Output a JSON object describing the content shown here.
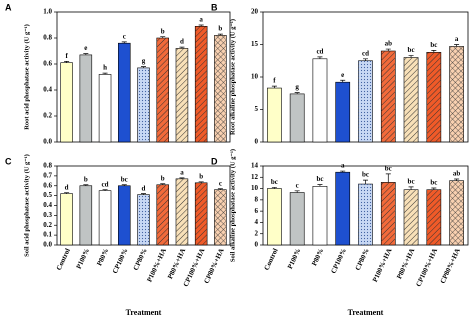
{
  "chart_data": [
    {
      "type": "bar",
      "panel": "A",
      "y_label": "Root acid phosphatase activity (U g⁻¹)",
      "categories": [
        null,
        null,
        null,
        null,
        null,
        null,
        null,
        null,
        null
      ],
      "values": [
        0.61,
        0.67,
        0.52,
        0.76,
        0.57,
        0.8,
        0.72,
        0.89,
        0.82
      ],
      "errors": [
        0.01,
        0.01,
        0.01,
        0.01,
        0.01,
        0.01,
        0.01,
        0.01,
        0.01
      ],
      "annotations": [
        "f",
        "e",
        "h",
        "c",
        "g",
        "b",
        "d",
        "a",
        "b"
      ],
      "colors": [
        "#ffffc8",
        "#c0c4c4",
        "#ffffff",
        "#1e50d0",
        "#c8d8f4",
        "#f26a3a",
        "#f8e0b8",
        "#f05a28",
        "#f8d0b0"
      ],
      "patterns": [
        "none",
        "none",
        "none",
        "none",
        "dots",
        "hatch",
        "hatch",
        "hatch",
        "cross"
      ],
      "ylim": [
        0,
        1.0
      ],
      "yticks": [
        {
          "value": 0,
          "label": "0.0"
        },
        0.2,
        0.4,
        0.6,
        0.8,
        {
          "value": 1,
          "label": "1.0"
        }
      ]
    },
    {
      "type": "bar",
      "panel": "B",
      "y_label": "Root alkaline phosphatase activity (U g⁻¹)",
      "categories": [
        null,
        null,
        null,
        null,
        null,
        null,
        null,
        null,
        null
      ],
      "values": [
        8.3,
        7.4,
        12.8,
        9.2,
        12.5,
        14.0,
        13.0,
        13.8,
        14.7
      ],
      "errors": [
        0.3,
        0.2,
        0.3,
        0.3,
        0.3,
        0.3,
        0.3,
        0.3,
        0.3
      ],
      "annotations": [
        "f",
        "g",
        "cd",
        "e",
        "cd",
        "ab",
        "bc",
        "bc",
        "a"
      ],
      "colors": [
        "#ffffc8",
        "#c0c4c4",
        "#ffffff",
        "#1e50d0",
        "#c8d8f4",
        "#f26a3a",
        "#f8e0b8",
        "#f05a28",
        "#f8d0b0"
      ],
      "patterns": [
        "none",
        "none",
        "none",
        "none",
        "dots",
        "hatch",
        "hatch",
        "hatch",
        "cross"
      ],
      "ylim": [
        0,
        20
      ],
      "yticks": [
        0,
        5,
        10,
        15,
        20
      ]
    },
    {
      "type": "bar",
      "panel": "C",
      "y_label": "Soil acid phosphatase activity (U g⁻¹)",
      "x_label": "Treatment",
      "categories": [
        "Control",
        "P100%",
        "P80%",
        "CP100%",
        "CP80%",
        "P100%+HA",
        "P80%+HA",
        "CP100%+HA",
        "CP80%+HA"
      ],
      "values": [
        0.52,
        0.6,
        0.55,
        0.6,
        0.51,
        0.61,
        0.67,
        0.63,
        0.56
      ],
      "errors": [
        0.01,
        0.01,
        0.01,
        0.01,
        0.01,
        0.01,
        0.01,
        0.01,
        0.01
      ],
      "annotations": [
        "d",
        "b",
        "cd",
        "bc",
        "d",
        "b",
        "a",
        "b",
        "c"
      ],
      "colors": [
        "#ffffc8",
        "#c0c4c4",
        "#ffffff",
        "#1e50d0",
        "#c8d8f4",
        "#f26a3a",
        "#f8e0b8",
        "#f05a28",
        "#f8d0b0"
      ],
      "patterns": [
        "none",
        "none",
        "none",
        "none",
        "dots",
        "hatch",
        "hatch",
        "hatch",
        "cross"
      ],
      "ylim": [
        0,
        0.8
      ],
      "yticks": [
        {
          "value": 0,
          "label": "0.0"
        },
        0.1,
        0.2,
        0.3,
        0.4,
        0.5,
        0.6,
        0.7,
        0.8
      ]
    },
    {
      "type": "bar",
      "panel": "D",
      "y_label": "Soil alkaline phosphatase activity (U g⁻¹)",
      "x_label": "Treatment",
      "categories": [
        "Control",
        "P100%",
        "P80%",
        "CP100%",
        "CP80%",
        "P100%+HA",
        "P80%+HA",
        "CP100%+HA",
        "CP80%+HA"
      ],
      "values": [
        10.0,
        9.3,
        10.4,
        12.9,
        10.8,
        11.1,
        9.8,
        9.8,
        11.4
      ],
      "errors": [
        0.2,
        0.3,
        0.3,
        0.2,
        0.7,
        1.5,
        0.5,
        0.3,
        0.3
      ],
      "annotations": [
        "bc",
        "c",
        "bc",
        "a",
        "bc",
        "bc",
        "bc",
        "bc",
        "ab"
      ],
      "colors": [
        "#ffffc8",
        "#c0c4c4",
        "#ffffff",
        "#1e50d0",
        "#c8d8f4",
        "#f26a3a",
        "#f8e0b8",
        "#f05a28",
        "#f8d0b0"
      ],
      "patterns": [
        "none",
        "none",
        "none",
        "none",
        "dots",
        "hatch",
        "hatch",
        "hatch",
        "cross"
      ],
      "ylim": [
        0,
        14
      ],
      "yticks": [
        0,
        2,
        4,
        6,
        8,
        10,
        12,
        14
      ]
    }
  ]
}
